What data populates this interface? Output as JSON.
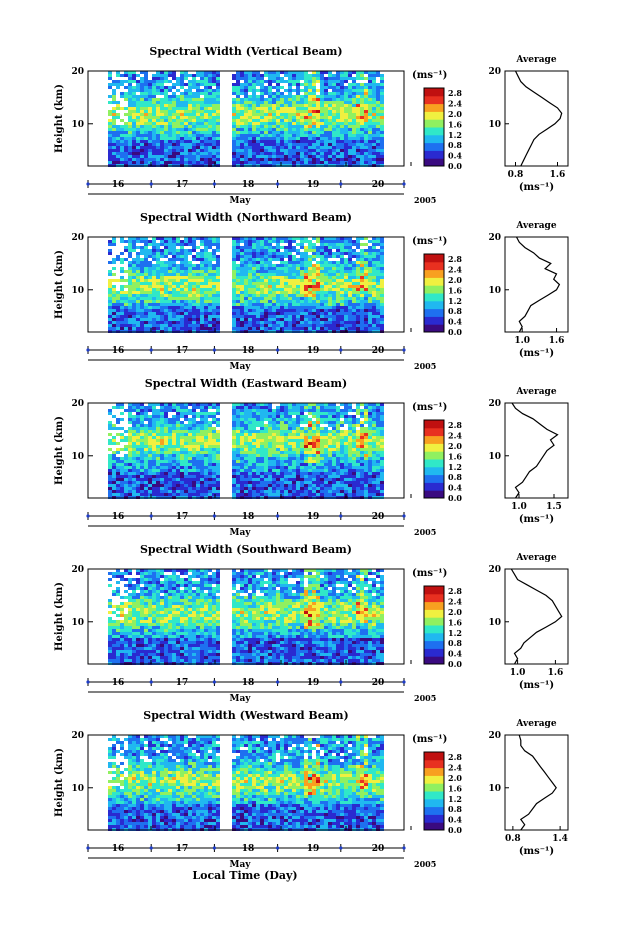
{
  "chart_data": [
    {
      "type": "heatmap",
      "title": "Spectral Width (Vertical Beam)",
      "ylabel": "Height (km)",
      "yticks": [
        "20",
        "10"
      ],
      "ylim": [
        2,
        20
      ],
      "xlabel": "May",
      "xticks": [
        "16",
        "17",
        "18",
        "19",
        "20"
      ],
      "year_label": "2005",
      "colorbar": {
        "unit_label": "(ms⁻¹)",
        "ticks": [
          "2.8",
          "2.4",
          "2.0",
          "1.6",
          "1.2",
          "0.8",
          "0.4",
          "0.0"
        ],
        "range": [
          0.0,
          3.0
        ],
        "colors": [
          "#3a0a80",
          "#2a2ad0",
          "#1e70f0",
          "#20b8f0",
          "#30e8c8",
          "#90f060",
          "#f0f040",
          "#f8a020",
          "#e83020",
          "#c01010"
        ]
      },
      "average": {
        "title": "Average",
        "xticks": [
          "0.8",
          "1.6"
        ],
        "xlim": [
          0.6,
          1.8
        ],
        "xlabel": "(ms⁻¹)",
        "yticks": [
          "20",
          "10"
        ],
        "ylim": [
          2,
          20
        ],
        "profile": [
          [
            2,
            0.9
          ],
          [
            3,
            0.95
          ],
          [
            4,
            1.0
          ],
          [
            5,
            1.05
          ],
          [
            6,
            1.1
          ],
          [
            7,
            1.15
          ],
          [
            8,
            1.25
          ],
          [
            9,
            1.4
          ],
          [
            10,
            1.55
          ],
          [
            11,
            1.65
          ],
          [
            12,
            1.68
          ],
          [
            13,
            1.6
          ],
          [
            14,
            1.45
          ],
          [
            15,
            1.3
          ],
          [
            16,
            1.15
          ],
          [
            17,
            1.0
          ],
          [
            18,
            0.9
          ],
          [
            19,
            0.85
          ],
          [
            20,
            0.8
          ]
        ]
      },
      "hot_band_km": 12.0
    },
    {
      "type": "heatmap",
      "title": "Spectral Width (Northward Beam)",
      "ylabel": "Height (km)",
      "yticks": [
        "20",
        "10"
      ],
      "ylim": [
        2,
        20
      ],
      "xlabel": "May",
      "xticks": [
        "16",
        "17",
        "18",
        "19",
        "20"
      ],
      "year_label": "2005",
      "colorbar": {
        "unit_label": "(ms⁻¹)",
        "ticks": [
          "2.8",
          "2.4",
          "2.0",
          "1.6",
          "1.2",
          "0.8",
          "0.4",
          "0.0"
        ],
        "range": [
          0.0,
          3.0
        ],
        "colors": [
          "#3a0a80",
          "#2a2ad0",
          "#1e70f0",
          "#20b8f0",
          "#30e8c8",
          "#90f060",
          "#f0f040",
          "#f8a020",
          "#e83020",
          "#c01010"
        ]
      },
      "average": {
        "title": "Average",
        "xticks": [
          "1.0",
          "1.6"
        ],
        "xlim": [
          0.7,
          1.8
        ],
        "xlabel": "(ms⁻¹)",
        "yticks": [
          "20",
          "10"
        ],
        "ylim": [
          2,
          20
        ],
        "profile": [
          [
            2,
            0.95
          ],
          [
            3,
            1.0
          ],
          [
            4,
            0.95
          ],
          [
            5,
            1.05
          ],
          [
            6,
            1.1
          ],
          [
            7,
            1.15
          ],
          [
            8,
            1.3
          ],
          [
            9,
            1.45
          ],
          [
            10,
            1.6
          ],
          [
            11,
            1.65
          ],
          [
            12,
            1.55
          ],
          [
            13,
            1.6
          ],
          [
            14,
            1.4
          ],
          [
            15,
            1.5
          ],
          [
            16,
            1.3
          ],
          [
            17,
            1.2
          ],
          [
            18,
            1.05
          ],
          [
            19,
            0.95
          ],
          [
            20,
            0.9
          ]
        ]
      },
      "hot_band_km": 11.0
    },
    {
      "type": "heatmap",
      "title": "Spectral Width (Eastward Beam)",
      "ylabel": "Height (km)",
      "yticks": [
        "20",
        "10"
      ],
      "ylim": [
        2,
        20
      ],
      "xlabel": "May",
      "xticks": [
        "16",
        "17",
        "18",
        "19",
        "20"
      ],
      "year_label": "2005",
      "colorbar": {
        "unit_label": "(ms⁻¹)",
        "ticks": [
          "2.8",
          "2.4",
          "2.0",
          "1.6",
          "1.2",
          "0.8",
          "0.4",
          "0.0"
        ],
        "range": [
          0.0,
          3.0
        ],
        "colors": [
          "#3a0a80",
          "#2a2ad0",
          "#1e70f0",
          "#20b8f0",
          "#30e8c8",
          "#90f060",
          "#f0f040",
          "#f8a020",
          "#e83020",
          "#c01010"
        ]
      },
      "average": {
        "title": "Average",
        "xticks": [
          "1.0",
          "1.5"
        ],
        "xlim": [
          0.8,
          1.7
        ],
        "xlabel": "(ms⁻¹)",
        "yticks": [
          "20",
          "10"
        ],
        "ylim": [
          2,
          20
        ],
        "profile": [
          [
            2,
            0.95
          ],
          [
            3,
            1.0
          ],
          [
            4,
            0.95
          ],
          [
            5,
            1.05
          ],
          [
            6,
            1.1
          ],
          [
            7,
            1.15
          ],
          [
            8,
            1.25
          ],
          [
            9,
            1.3
          ],
          [
            10,
            1.35
          ],
          [
            11,
            1.4
          ],
          [
            12,
            1.5
          ],
          [
            13,
            1.45
          ],
          [
            14,
            1.55
          ],
          [
            15,
            1.4
          ],
          [
            16,
            1.3
          ],
          [
            17,
            1.2
          ],
          [
            18,
            1.05
          ],
          [
            19,
            0.95
          ],
          [
            20,
            0.9
          ]
        ]
      },
      "hot_band_km": 13.0
    },
    {
      "type": "heatmap",
      "title": "Spectral Width (Southward Beam)",
      "ylabel": "Height (km)",
      "yticks": [
        "20",
        "10"
      ],
      "ylim": [
        2,
        20
      ],
      "xlabel": "May",
      "xticks": [
        "16",
        "17",
        "18",
        "19",
        "20"
      ],
      "year_label": "2005",
      "colorbar": {
        "unit_label": "(ms⁻¹)",
        "ticks": [
          "2.8",
          "2.4",
          "2.0",
          "1.6",
          "1.2",
          "0.8",
          "0.4",
          "0.0"
        ],
        "range": [
          0.0,
          3.0
        ],
        "colors": [
          "#3a0a80",
          "#2a2ad0",
          "#1e70f0",
          "#20b8f0",
          "#30e8c8",
          "#90f060",
          "#f0f040",
          "#f8a020",
          "#e83020",
          "#c01010"
        ]
      },
      "average": {
        "title": "Average",
        "xticks": [
          "1.0",
          "1.6"
        ],
        "xlim": [
          0.8,
          1.8
        ],
        "xlabel": "(ms⁻¹)",
        "yticks": [
          "20",
          "10"
        ],
        "ylim": [
          2,
          20
        ],
        "profile": [
          [
            2,
            0.95
          ],
          [
            3,
            1.0
          ],
          [
            4,
            0.95
          ],
          [
            5,
            1.05
          ],
          [
            6,
            1.1
          ],
          [
            7,
            1.2
          ],
          [
            8,
            1.3
          ],
          [
            9,
            1.45
          ],
          [
            10,
            1.6
          ],
          [
            11,
            1.7
          ],
          [
            12,
            1.65
          ],
          [
            13,
            1.6
          ],
          [
            14,
            1.55
          ],
          [
            15,
            1.45
          ],
          [
            16,
            1.3
          ],
          [
            17,
            1.15
          ],
          [
            18,
            1.0
          ],
          [
            19,
            0.95
          ],
          [
            20,
            0.9
          ]
        ]
      },
      "hot_band_km": 12.0
    },
    {
      "type": "heatmap",
      "title": "Spectral Width (Westward Beam)",
      "ylabel": "Height (km)",
      "yticks": [
        "20",
        "10"
      ],
      "ylim": [
        2,
        20
      ],
      "xlabel": "May",
      "xticks": [
        "16",
        "17",
        "18",
        "19",
        "20"
      ],
      "year_label": "2005",
      "colorbar": {
        "unit_label": "(ms⁻¹)",
        "ticks": [
          "2.8",
          "2.4",
          "2.0",
          "1.6",
          "1.2",
          "0.8",
          "0.4",
          "0.0"
        ],
        "range": [
          0.0,
          3.0
        ],
        "colors": [
          "#3a0a80",
          "#2a2ad0",
          "#1e70f0",
          "#20b8f0",
          "#30e8c8",
          "#90f060",
          "#f0f040",
          "#f8a020",
          "#e83020",
          "#c01010"
        ]
      },
      "average": {
        "title": "Average",
        "xticks": [
          "0.8",
          "1.4"
        ],
        "xlim": [
          0.7,
          1.5
        ],
        "xlabel": "(ms⁻¹)",
        "yticks": [
          "20",
          "10"
        ],
        "ylim": [
          2,
          20
        ],
        "profile": [
          [
            2,
            0.9
          ],
          [
            3,
            0.95
          ],
          [
            4,
            0.9
          ],
          [
            5,
            1.0
          ],
          [
            6,
            1.05
          ],
          [
            7,
            1.1
          ],
          [
            8,
            1.2
          ],
          [
            9,
            1.3
          ],
          [
            10,
            1.35
          ],
          [
            11,
            1.3
          ],
          [
            12,
            1.25
          ],
          [
            13,
            1.2
          ],
          [
            14,
            1.15
          ],
          [
            15,
            1.1
          ],
          [
            16,
            1.05
          ],
          [
            17,
            0.95
          ],
          [
            18,
            0.9
          ],
          [
            19,
            0.9
          ],
          [
            20,
            0.88
          ]
        ]
      },
      "hot_band_km": 11.5
    }
  ],
  "footer": {
    "xlabel": "Local Time (Day)"
  }
}
